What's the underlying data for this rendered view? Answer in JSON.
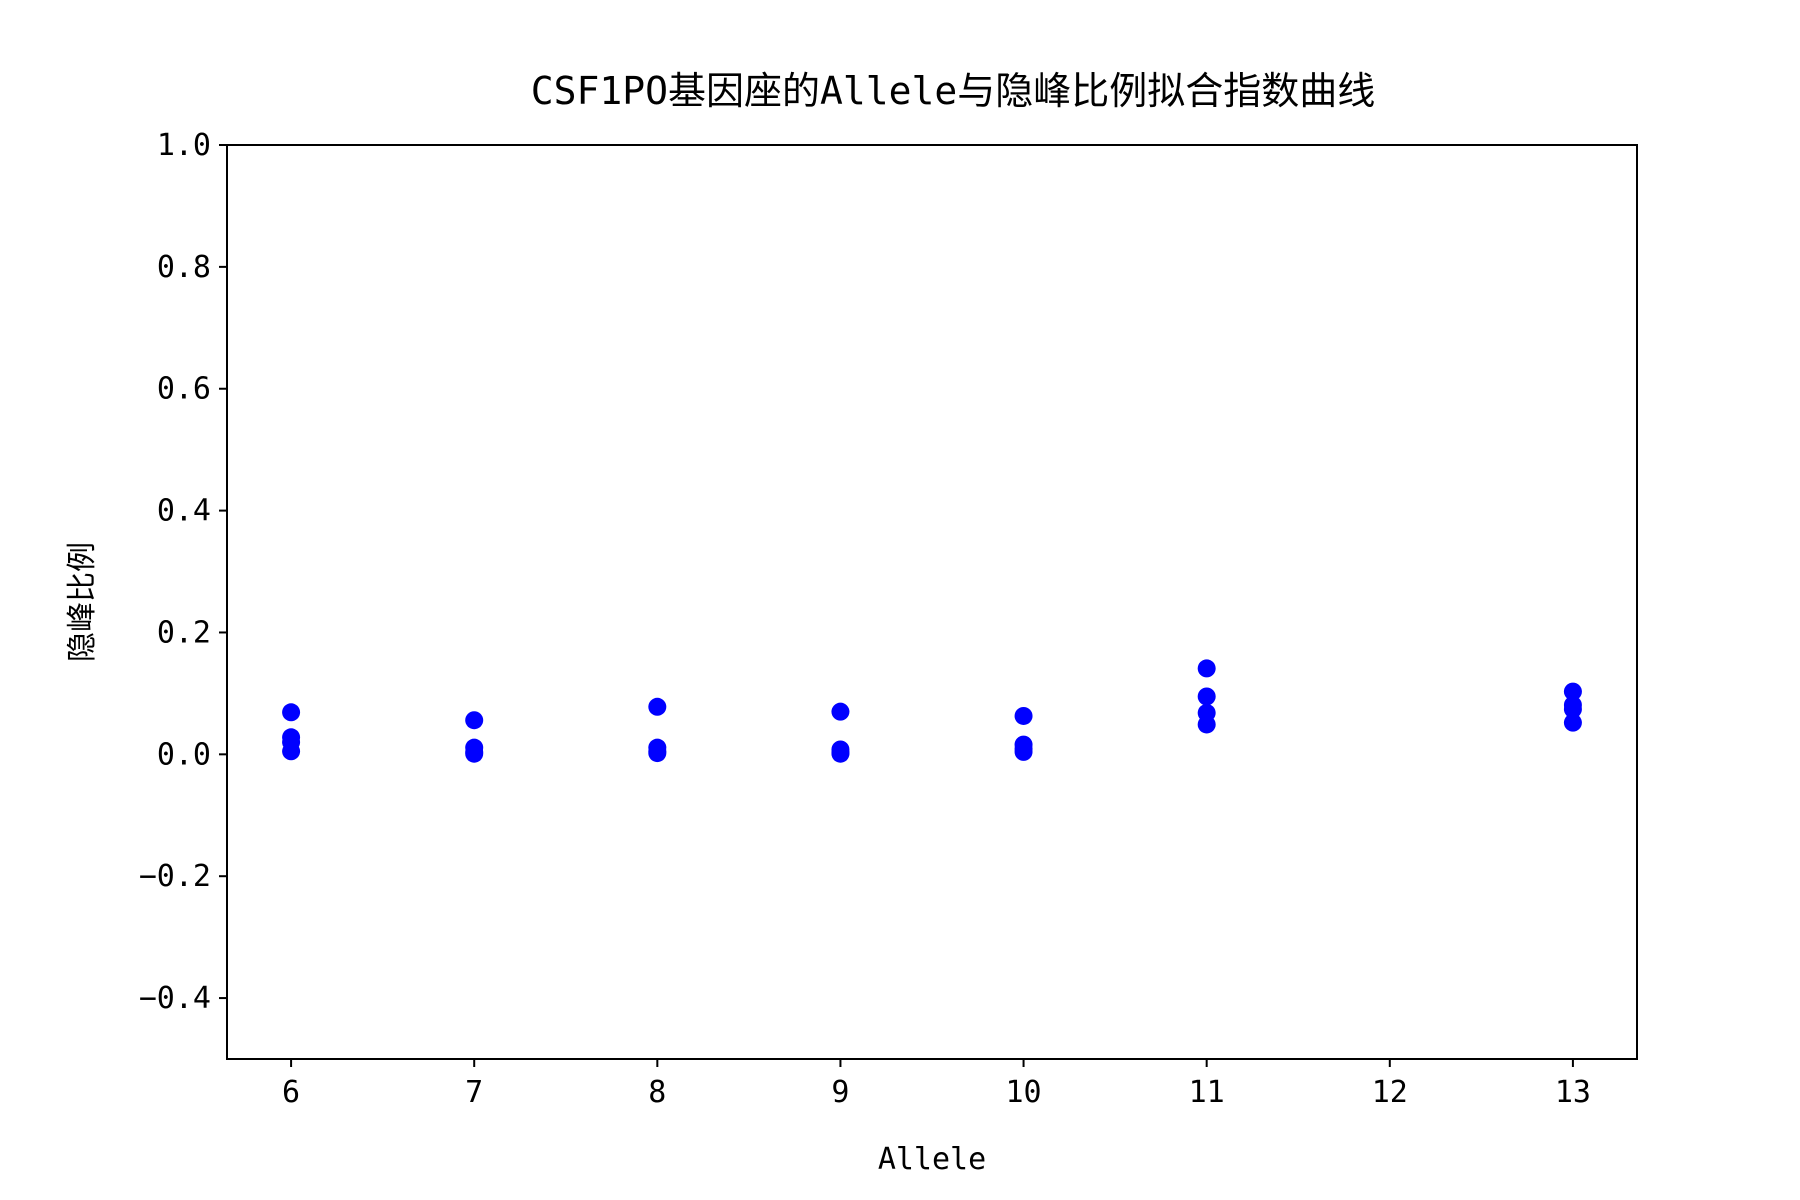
{
  "chart_data": {
    "type": "scatter",
    "title": "CSF1PO基因座的Allele与隐峰比例拟合指数曲线",
    "xlabel": "Allele",
    "ylabel": "隐峰比例",
    "xlim": [
      5.65,
      13.35
    ],
    "ylim": [
      -0.5,
      1.0
    ],
    "xticks": [
      6,
      7,
      8,
      9,
      10,
      11,
      12,
      13
    ],
    "xtick_labels": [
      "6",
      "7",
      "8",
      "9",
      "10",
      "11",
      "12",
      "13"
    ],
    "yticks": [
      -0.4,
      -0.2,
      0.0,
      0.2,
      0.4,
      0.6,
      0.8,
      1.0
    ],
    "ytick_labels": [
      "−0.4",
      "−0.2",
      "0.0",
      "0.2",
      "0.4",
      "0.6",
      "0.8",
      "1.0"
    ],
    "grid": false,
    "series": [
      {
        "color": "#0000ff",
        "points": [
          {
            "x": 6,
            "y": 0.069
          },
          {
            "x": 6,
            "y": 0.028
          },
          {
            "x": 6,
            "y": 0.02
          },
          {
            "x": 6,
            "y": 0.005
          },
          {
            "x": 7,
            "y": 0.056
          },
          {
            "x": 7,
            "y": 0.011
          },
          {
            "x": 7,
            "y": 0.004
          },
          {
            "x": 7,
            "y": 0.001
          },
          {
            "x": 8,
            "y": 0.078
          },
          {
            "x": 8,
            "y": 0.011
          },
          {
            "x": 8,
            "y": 0.005
          },
          {
            "x": 8,
            "y": 0.002
          },
          {
            "x": 9,
            "y": 0.07
          },
          {
            "x": 9,
            "y": 0.008
          },
          {
            "x": 9,
            "y": 0.003
          },
          {
            "x": 9,
            "y": 0.001
          },
          {
            "x": 10,
            "y": 0.063
          },
          {
            "x": 10,
            "y": 0.016
          },
          {
            "x": 10,
            "y": 0.009
          },
          {
            "x": 10,
            "y": 0.004
          },
          {
            "x": 11,
            "y": 0.141
          },
          {
            "x": 11,
            "y": 0.095
          },
          {
            "x": 11,
            "y": 0.068
          },
          {
            "x": 11,
            "y": 0.049
          },
          {
            "x": 13,
            "y": 0.103
          },
          {
            "x": 13,
            "y": 0.081
          },
          {
            "x": 13,
            "y": 0.074
          },
          {
            "x": 13,
            "y": 0.052
          }
        ]
      }
    ]
  }
}
